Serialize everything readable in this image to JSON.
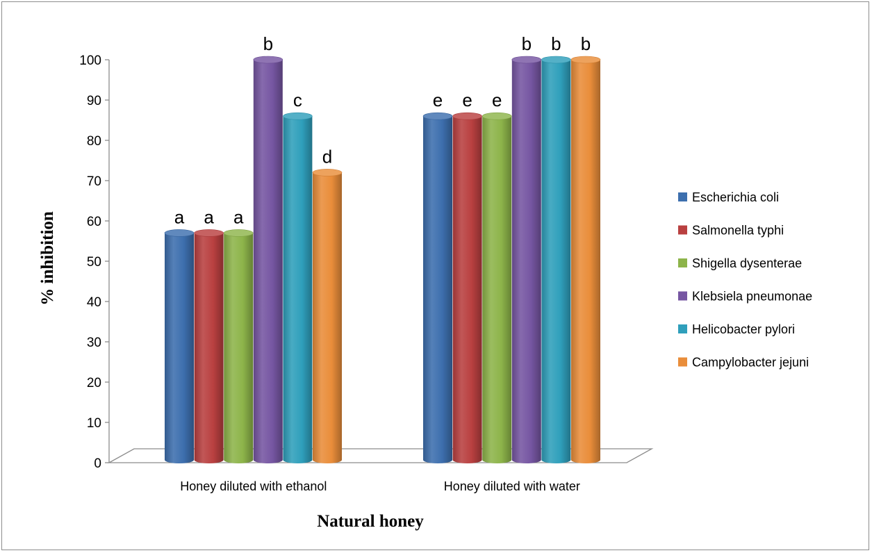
{
  "chart_data": {
    "type": "bar",
    "style": "3d-cylinder",
    "xlabel": "Natural honey",
    "ylabel": "% inhibition",
    "ylim": [
      0,
      100
    ],
    "yticks": [
      0,
      10,
      20,
      30,
      40,
      50,
      60,
      70,
      80,
      90,
      100
    ],
    "grid": false,
    "legend_position": "right",
    "categories": [
      "Honey diluted with ethanol",
      "Honey diluted with water"
    ],
    "series": [
      {
        "name": "Escherichia coli",
        "color": "#3d6fae",
        "values": [
          57,
          86
        ],
        "labels": [
          "a",
          "e"
        ]
      },
      {
        "name": "Salmonella typhi",
        "color": "#b94040",
        "values": [
          57,
          86
        ],
        "labels": [
          "a",
          "e"
        ]
      },
      {
        "name": "Shigella dysenterae",
        "color": "#8db44a",
        "values": [
          57,
          86
        ],
        "labels": [
          "a",
          "e"
        ]
      },
      {
        "name": "Klebsiela pneumonae",
        "color": "#7656a2",
        "values": [
          100,
          100
        ],
        "labels": [
          "b",
          "b"
        ]
      },
      {
        "name": "Helicobacter pylori",
        "color": "#2f9fbb",
        "values": [
          86,
          100
        ],
        "labels": [
          "c",
          "b"
        ]
      },
      {
        "name": "Campylobacter jejuni",
        "color": "#e98d3a",
        "values": [
          72,
          100
        ],
        "labels": [
          "d",
          "b"
        ]
      }
    ]
  }
}
